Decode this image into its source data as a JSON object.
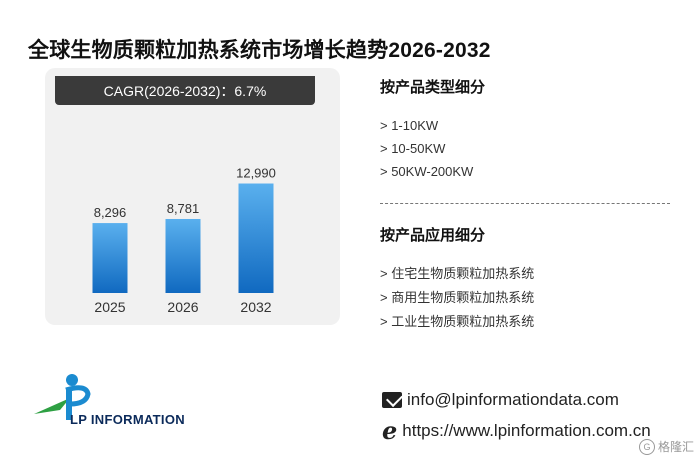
{
  "title": "全球生物质颗粒加热系统市场增长趋势2026-2032",
  "cagr_label": "CAGR(2026-2032)：6.7%",
  "chart_data": {
    "type": "bar",
    "categories": [
      "2025",
      "2026",
      "2032"
    ],
    "values": [
      8296,
      8781,
      12990
    ],
    "value_labels": [
      "8,296",
      "8,781",
      "12,990"
    ],
    "bar_colors": [
      "#5ab0ee",
      "#1069c0"
    ],
    "ylim": [
      0,
      14000
    ]
  },
  "segments": {
    "by_type": {
      "heading": "按产品类型细分",
      "items": [
        "> 1-10KW",
        "> 10-50KW",
        "> 50KW-200KW"
      ]
    },
    "by_application": {
      "heading": "按产品应用细分",
      "items": [
        "> 住宅生物质颗粒加热系统",
        "> 商用生物质颗粒加热系统",
        "> 工业生物质颗粒加热系统"
      ]
    }
  },
  "logo": {
    "text": "LP INFORMATION",
    "colors": [
      "#1b8bd0",
      "#2ea043",
      "#0b2a5a"
    ]
  },
  "contact": {
    "email": "info@lpinformationdata.com",
    "website": "https://www.lpinformation.com.cn",
    "email_icon": "mail-icon",
    "web_icon": "ie-icon"
  },
  "corner_watermark": "格隆汇"
}
